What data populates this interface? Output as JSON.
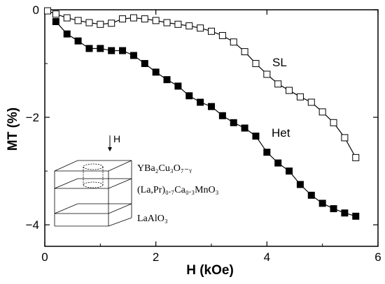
{
  "chart_data": {
    "type": "scatter",
    "xlabel": "H (kOe)",
    "ylabel": "MT (%)",
    "xlim": [
      0,
      6
    ],
    "ylim": [
      -4.4,
      0
    ],
    "xticks": [
      0,
      2,
      4,
      6
    ],
    "yticks": [
      0,
      -2,
      -4
    ],
    "grid": false,
    "series": [
      {
        "name": "SL",
        "marker": "open-square",
        "color": "#000000",
        "points": [
          [
            0.05,
            -0.02
          ],
          [
            0.2,
            -0.08
          ],
          [
            0.4,
            -0.15
          ],
          [
            0.6,
            -0.2
          ],
          [
            0.8,
            -0.24
          ],
          [
            1.0,
            -0.27
          ],
          [
            1.2,
            -0.25
          ],
          [
            1.4,
            -0.17
          ],
          [
            1.6,
            -0.15
          ],
          [
            1.8,
            -0.17
          ],
          [
            2.0,
            -0.2
          ],
          [
            2.2,
            -0.24
          ],
          [
            2.4,
            -0.27
          ],
          [
            2.6,
            -0.3
          ],
          [
            2.8,
            -0.34
          ],
          [
            3.0,
            -0.4
          ],
          [
            3.2,
            -0.48
          ],
          [
            3.4,
            -0.6
          ],
          [
            3.6,
            -0.78
          ],
          [
            3.8,
            -1.0
          ],
          [
            4.0,
            -1.2
          ],
          [
            4.2,
            -1.38
          ],
          [
            4.4,
            -1.5
          ],
          [
            4.6,
            -1.62
          ],
          [
            4.8,
            -1.72
          ],
          [
            5.0,
            -1.9
          ],
          [
            5.2,
            -2.1
          ],
          [
            5.4,
            -2.38
          ],
          [
            5.6,
            -2.75
          ]
        ]
      },
      {
        "name": "Het",
        "marker": "filled-square",
        "color": "#000000",
        "points": [
          [
            0.2,
            -0.22
          ],
          [
            0.4,
            -0.45
          ],
          [
            0.6,
            -0.58
          ],
          [
            0.8,
            -0.72
          ],
          [
            1.0,
            -0.72
          ],
          [
            1.2,
            -0.76
          ],
          [
            1.4,
            -0.76
          ],
          [
            1.6,
            -0.85
          ],
          [
            1.8,
            -1.0
          ],
          [
            2.0,
            -1.16
          ],
          [
            2.2,
            -1.3
          ],
          [
            2.4,
            -1.42
          ],
          [
            2.6,
            -1.6
          ],
          [
            2.8,
            -1.72
          ],
          [
            3.0,
            -1.8
          ],
          [
            3.2,
            -1.97
          ],
          [
            3.4,
            -2.1
          ],
          [
            3.6,
            -2.2
          ],
          [
            3.8,
            -2.35
          ],
          [
            4.0,
            -2.65
          ],
          [
            4.2,
            -2.85
          ],
          [
            4.4,
            -3.0
          ],
          [
            4.6,
            -3.25
          ],
          [
            4.8,
            -3.45
          ],
          [
            5.0,
            -3.6
          ],
          [
            5.2,
            -3.7
          ],
          [
            5.4,
            -3.78
          ],
          [
            5.6,
            -3.84
          ]
        ]
      }
    ]
  },
  "inset": {
    "field_label": "H",
    "layer_top": "YBa₂Cu₃O₇₋ᵧ",
    "layer_middle": "(La,Pr)₀.₇Ca₀.₃MnO₃",
    "layer_bottom": "LaAlO₃"
  }
}
